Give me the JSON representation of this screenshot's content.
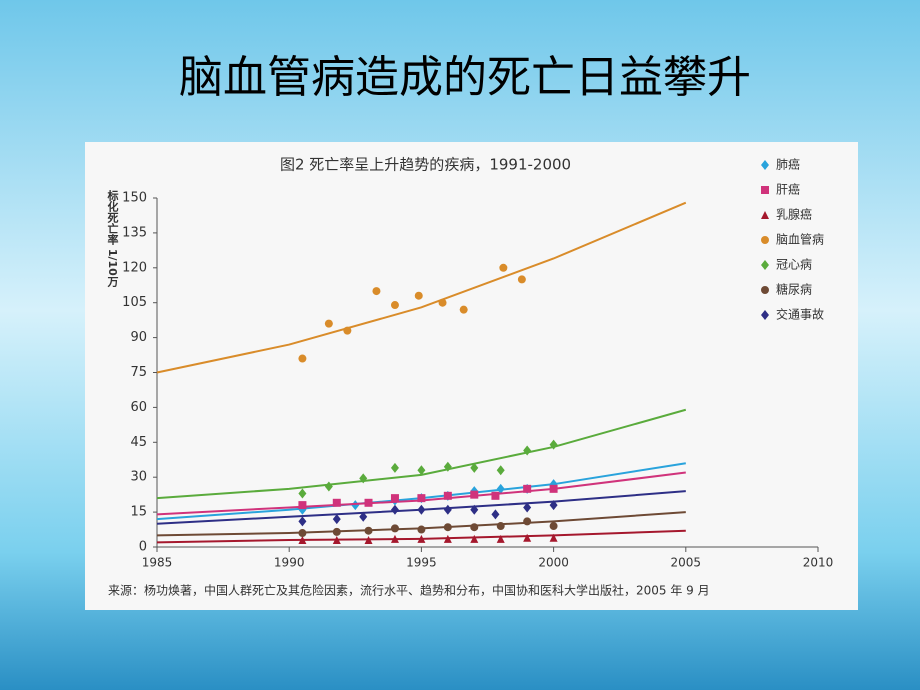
{
  "slide_title": "脑血管病造成的死亡日益攀升",
  "chart_data": {
    "type": "scatter",
    "title": "图2  死亡率呈上升趋势的疾病，1991-2000",
    "y_label": "标化死亡率 1/10万",
    "source": "来源：杨功焕著，中国人群死亡及其危险因素，流行水平、趋势和分布，中国协和医科大学出版社，2005 年 9 月",
    "xlim": [
      1985,
      2010
    ],
    "xticks": [
      1985,
      1990,
      1995,
      2000,
      2005,
      2010
    ],
    "ylim": [
      0,
      150
    ],
    "yticks": [
      0,
      15,
      30,
      45,
      60,
      75,
      90,
      105,
      120,
      135,
      150
    ],
    "series": [
      {
        "name": "肺癌",
        "color": "#29a3dc",
        "marker": "diamond",
        "x": [
          1990.5,
          1992.5,
          1994,
          1995,
          1996,
          1997,
          1998,
          1999,
          2000
        ],
        "values": [
          16,
          18,
          20,
          21,
          22,
          24,
          25,
          25,
          27
        ],
        "trend_x": [
          1985,
          1990,
          1995,
          2000,
          2005
        ],
        "trend_values": [
          12,
          16,
          21,
          27,
          36
        ]
      },
      {
        "name": "肝癌",
        "color": "#d0337b",
        "marker": "square",
        "x": [
          1990.5,
          1991.8,
          1993,
          1994,
          1995,
          1996,
          1997,
          1997.8,
          1999,
          2000
        ],
        "values": [
          18,
          19,
          19,
          21,
          21,
          22,
          22.5,
          22,
          25,
          25
        ],
        "trend_x": [
          1985,
          1990,
          1995,
          2000,
          2005
        ],
        "trend_values": [
          14,
          17,
          20,
          25,
          32
        ]
      },
      {
        "name": "乳腺癌",
        "color": "#a5182d",
        "marker": "triangle",
        "x": [
          1990.5,
          1991.8,
          1993,
          1994,
          1995,
          1996,
          1997,
          1998,
          1999,
          2000
        ],
        "values": [
          3,
          3,
          3,
          3.5,
          3.5,
          3.5,
          3.5,
          3.5,
          4,
          4
        ],
        "trend_x": [
          1985,
          1990,
          1995,
          2000,
          2005
        ],
        "trend_values": [
          2,
          3,
          3.5,
          5,
          7
        ]
      },
      {
        "name": "脑血管病",
        "color": "#d98c2a",
        "marker": "circle",
        "x": [
          1990.5,
          1991.5,
          1992.2,
          1993.3,
          1994,
          1994.9,
          1995.8,
          1996.6,
          1998.1,
          1998.8
        ],
        "values": [
          81,
          96,
          93,
          110,
          104,
          108,
          105,
          102,
          120,
          115
        ],
        "trend_x": [
          1985,
          1990,
          1995,
          2000,
          2005
        ],
        "trend_values": [
          75,
          87,
          103,
          124,
          148
        ]
      },
      {
        "name": "冠心病",
        "color": "#5aab3c",
        "marker": "diamond",
        "x": [
          1990.5,
          1991.5,
          1992.8,
          1994,
          1995,
          1996,
          1997,
          1998,
          1999,
          2000
        ],
        "values": [
          23,
          26,
          29.5,
          34,
          33,
          34.5,
          34,
          33,
          41.5,
          44
        ],
        "trend_x": [
          1985,
          1990,
          1995,
          2000,
          2005
        ],
        "trend_values": [
          21,
          25,
          31,
          43,
          59
        ]
      },
      {
        "name": "糖尿病",
        "color": "#6e4a35",
        "marker": "circle",
        "x": [
          1990.5,
          1991.8,
          1993,
          1994,
          1995,
          1996,
          1997,
          1998,
          1999,
          2000
        ],
        "values": [
          6,
          6.5,
          7,
          8,
          7.5,
          8.5,
          8.5,
          9,
          11,
          9
        ],
        "trend_x": [
          1985,
          1990,
          1995,
          2000,
          2005
        ],
        "trend_values": [
          5,
          6,
          8,
          11,
          15
        ]
      },
      {
        "name": "交通事故",
        "color": "#2e2f86",
        "marker": "diamond",
        "x": [
          1990.5,
          1991.8,
          1992.8,
          1994,
          1995,
          1996,
          1997,
          1997.8,
          1999,
          2000
        ],
        "values": [
          11,
          12,
          13,
          16,
          16,
          16,
          16,
          14,
          17,
          18
        ],
        "trend_x": [
          1985,
          1990,
          1995,
          2000,
          2005
        ],
        "trend_values": [
          10,
          13,
          16,
          19.5,
          24
        ]
      }
    ]
  }
}
